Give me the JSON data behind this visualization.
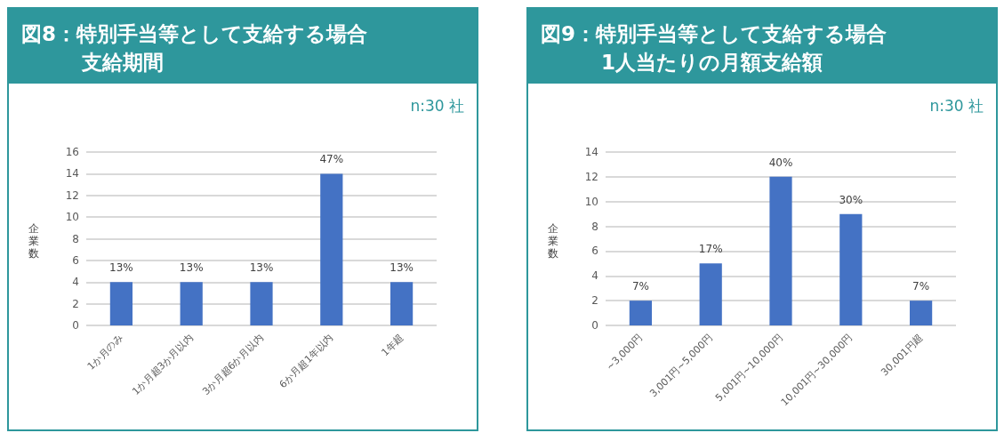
{
  "chart_data": [
    {
      "type": "bar",
      "title": "図8：特別手当等として支給する場合",
      "subtitle": "支給期間",
      "ylabel": "企業数",
      "annotations": [
        "n:30 社",
        {
          "text": "13%",
          "x": "1か月のみ",
          "y": 4
        },
        {
          "text": "13%",
          "x": "1か月超3か月以内",
          "y": 4
        },
        {
          "text": "13%",
          "x": "3か月超6か月以内",
          "y": 4
        },
        {
          "text": "47%",
          "x": "6か月超1年以内",
          "y": 14
        },
        {
          "text": "13%",
          "x": "1年超",
          "y": 4
        }
      ],
      "categories": [
        "1か月のみ",
        "1か月超3か月以内",
        "3か月超6か月以内",
        "6か月超1年以内",
        "1年超"
      ],
      "values": [
        4,
        4,
        4,
        14,
        4
      ],
      "color": "#4472c4",
      "ylim": [
        0,
        16
      ],
      "yticks": [
        0,
        2,
        4,
        6,
        8,
        10,
        12,
        14,
        16
      ],
      "grid": "y"
    },
    {
      "type": "bar",
      "title": "図9：特別手当等として支給する場合",
      "subtitle": "1人当たりの月額支給額",
      "ylabel": "企業数",
      "annotations": [
        "n:30 社",
        {
          "text": "7%",
          "x": "~3,000円",
          "y": 2
        },
        {
          "text": "17%",
          "x": "3,001円~5,000円",
          "y": 5
        },
        {
          "text": "40%",
          "x": "5,001円~10,000円",
          "y": 12
        },
        {
          "text": "30%",
          "x": "10,001円~30,000円",
          "y": 9
        },
        {
          "text": "7%",
          "x": "30,001円超",
          "y": 2
        }
      ],
      "categories": [
        "~3,000円",
        "3,001円~5,000円",
        "5,001円~10,000円",
        "10,001円~30,000円",
        "30,001円超"
      ],
      "values": [
        2,
        5,
        12,
        9,
        2
      ],
      "color": "#4472c4",
      "ylim": [
        0,
        14
      ],
      "yticks": [
        0,
        2,
        4,
        6,
        8,
        10,
        12,
        14
      ],
      "grid": "y"
    }
  ]
}
